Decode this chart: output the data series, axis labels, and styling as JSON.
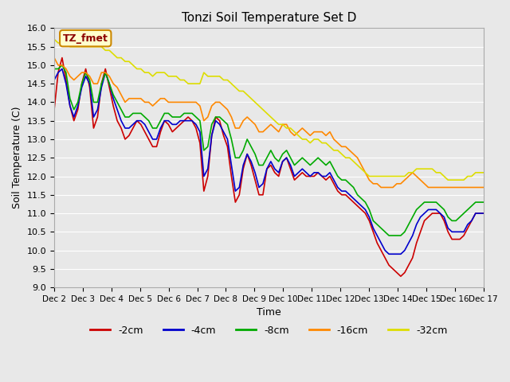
{
  "title": "Tonzi Soil Temperature Set D",
  "xlabel": "Time",
  "ylabel": "Soil Temperature (C)",
  "ylim": [
    9.0,
    16.0
  ],
  "yticks": [
    9.0,
    9.5,
    10.0,
    10.5,
    11.0,
    11.5,
    12.0,
    12.5,
    13.0,
    13.5,
    14.0,
    14.5,
    15.0,
    15.5,
    16.0
  ],
  "xtick_labels": [
    "Dec 2",
    "Dec 3",
    "Dec 4",
    "Dec 5",
    "Dec 6",
    "Dec 7",
    "Dec 8",
    "Dec 9",
    "Dec 10",
    "Dec 11",
    "Dec 12",
    "Dec 13",
    "Dec 14",
    "Dec 15",
    "Dec 16",
    "Dec 17"
  ],
  "colors": {
    "-2cm": "#cc0000",
    "-4cm": "#0000cc",
    "-8cm": "#00aa00",
    "-16cm": "#ff8800",
    "-32cm": "#dddd00"
  },
  "legend_label_box": "TZ_fmet",
  "legend_box_facecolor": "#ffffcc",
  "legend_box_edgecolor": "#cc8800",
  "background_color": "#e8e8e8",
  "plot_bg_color": "#e8e8e8",
  "grid_color": "#ffffff",
  "n_points": 360,
  "series": {
    "-2cm": [
      13.8,
      14.8,
      15.2,
      14.6,
      13.9,
      13.5,
      13.8,
      14.5,
      14.9,
      14.4,
      13.3,
      13.6,
      14.5,
      14.9,
      14.4,
      13.9,
      13.5,
      13.3,
      13.0,
      13.1,
      13.3,
      13.5,
      13.4,
      13.2,
      13.0,
      12.8,
      12.8,
      13.2,
      13.5,
      13.4,
      13.2,
      13.3,
      13.4,
      13.5,
      13.6,
      13.5,
      13.3,
      12.9,
      11.6,
      12.0,
      13.1,
      13.6,
      13.5,
      13.1,
      12.8,
      12.0,
      11.3,
      11.5,
      12.2,
      12.6,
      12.3,
      11.9,
      11.5,
      11.5,
      12.2,
      12.3,
      12.1,
      12.0,
      12.4,
      12.5,
      12.2,
      11.9,
      12.0,
      12.1,
      12.0,
      12.0,
      12.0,
      12.1,
      12.0,
      11.9,
      12.0,
      11.8,
      11.6,
      11.5,
      11.5,
      11.4,
      11.3,
      11.2,
      11.1,
      11.0,
      10.8,
      10.5,
      10.2,
      10.0,
      9.8,
      9.6,
      9.5,
      9.4,
      9.3,
      9.4,
      9.6,
      9.8,
      10.2,
      10.5,
      10.8,
      10.9,
      11.0,
      11.0,
      11.0,
      10.8,
      10.5,
      10.3,
      10.3,
      10.3,
      10.4,
      10.6,
      10.8,
      11.0,
      11.0,
      11.0
    ],
    "-4cm": [
      14.6,
      14.8,
      14.9,
      14.5,
      13.9,
      13.6,
      13.9,
      14.4,
      14.7,
      14.5,
      13.6,
      13.8,
      14.4,
      14.8,
      14.5,
      14.1,
      13.8,
      13.5,
      13.3,
      13.3,
      13.4,
      13.5,
      13.5,
      13.4,
      13.2,
      13.0,
      13.0,
      13.3,
      13.5,
      13.5,
      13.4,
      13.4,
      13.5,
      13.5,
      13.5,
      13.5,
      13.4,
      13.2,
      12.0,
      12.2,
      13.1,
      13.5,
      13.4,
      13.2,
      13.0,
      12.3,
      11.6,
      11.7,
      12.3,
      12.6,
      12.4,
      12.1,
      11.7,
      11.8,
      12.2,
      12.4,
      12.2,
      12.1,
      12.4,
      12.5,
      12.3,
      12.0,
      12.1,
      12.2,
      12.1,
      12.0,
      12.1,
      12.1,
      12.0,
      12.0,
      12.1,
      11.9,
      11.7,
      11.6,
      11.6,
      11.5,
      11.4,
      11.3,
      11.2,
      11.1,
      10.9,
      10.6,
      10.4,
      10.2,
      10.0,
      9.9,
      9.9,
      9.9,
      9.9,
      10.0,
      10.2,
      10.4,
      10.7,
      10.9,
      11.0,
      11.1,
      11.1,
      11.1,
      11.0,
      10.9,
      10.6,
      10.5,
      10.5,
      10.5,
      10.5,
      10.7,
      10.8,
      11.0,
      11.0,
      11.0
    ],
    "-8cm": [
      14.9,
      14.9,
      15.0,
      14.8,
      14.1,
      13.8,
      14.0,
      14.5,
      14.8,
      14.6,
      14.0,
      14.0,
      14.5,
      14.8,
      14.5,
      14.2,
      14.0,
      13.8,
      13.6,
      13.6,
      13.7,
      13.7,
      13.7,
      13.6,
      13.5,
      13.3,
      13.3,
      13.5,
      13.7,
      13.7,
      13.6,
      13.6,
      13.6,
      13.7,
      13.7,
      13.7,
      13.6,
      13.5,
      12.7,
      12.8,
      13.4,
      13.6,
      13.6,
      13.5,
      13.4,
      13.0,
      12.5,
      12.5,
      12.7,
      13.0,
      12.8,
      12.6,
      12.3,
      12.3,
      12.5,
      12.7,
      12.5,
      12.4,
      12.6,
      12.7,
      12.5,
      12.3,
      12.4,
      12.5,
      12.4,
      12.3,
      12.4,
      12.5,
      12.4,
      12.3,
      12.4,
      12.2,
      12.0,
      11.9,
      11.9,
      11.8,
      11.7,
      11.5,
      11.4,
      11.3,
      11.1,
      10.8,
      10.7,
      10.6,
      10.5,
      10.4,
      10.4,
      10.4,
      10.4,
      10.5,
      10.7,
      10.9,
      11.1,
      11.2,
      11.3,
      11.3,
      11.3,
      11.3,
      11.2,
      11.1,
      10.9,
      10.8,
      10.8,
      10.9,
      11.0,
      11.1,
      11.2,
      11.3,
      11.3,
      11.3
    ],
    "-16cm": [
      15.2,
      15.0,
      15.0,
      14.9,
      14.7,
      14.6,
      14.7,
      14.8,
      14.8,
      14.7,
      14.5,
      14.5,
      14.8,
      14.8,
      14.7,
      14.5,
      14.4,
      14.2,
      14.0,
      14.1,
      14.1,
      14.1,
      14.1,
      14.0,
      14.0,
      13.9,
      14.0,
      14.1,
      14.1,
      14.0,
      14.0,
      14.0,
      14.0,
      14.0,
      14.0,
      14.0,
      14.0,
      13.9,
      13.5,
      13.6,
      13.9,
      14.0,
      14.0,
      13.9,
      13.8,
      13.6,
      13.3,
      13.3,
      13.5,
      13.6,
      13.5,
      13.4,
      13.2,
      13.2,
      13.3,
      13.4,
      13.3,
      13.2,
      13.4,
      13.4,
      13.2,
      13.1,
      13.2,
      13.3,
      13.2,
      13.1,
      13.2,
      13.2,
      13.2,
      13.1,
      13.2,
      13.0,
      12.9,
      12.8,
      12.8,
      12.7,
      12.6,
      12.5,
      12.3,
      12.1,
      11.9,
      11.8,
      11.8,
      11.7,
      11.7,
      11.7,
      11.7,
      11.8,
      11.8,
      11.9,
      12.0,
      12.1,
      12.0,
      11.9,
      11.8,
      11.7,
      11.7,
      11.7,
      11.7,
      11.7,
      11.7,
      11.7,
      11.7,
      11.7,
      11.7,
      11.7,
      11.7,
      11.7,
      11.7,
      11.7
    ],
    "-32cm": [
      15.7,
      15.6,
      15.6,
      15.6,
      15.5,
      15.5,
      15.5,
      15.5,
      15.5,
      15.5,
      15.5,
      15.5,
      15.5,
      15.4,
      15.4,
      15.3,
      15.2,
      15.2,
      15.1,
      15.1,
      15.0,
      14.9,
      14.9,
      14.8,
      14.8,
      14.7,
      14.8,
      14.8,
      14.8,
      14.7,
      14.7,
      14.7,
      14.6,
      14.6,
      14.5,
      14.5,
      14.5,
      14.5,
      14.8,
      14.7,
      14.7,
      14.7,
      14.7,
      14.6,
      14.6,
      14.5,
      14.4,
      14.3,
      14.3,
      14.2,
      14.1,
      14.0,
      13.9,
      13.8,
      13.7,
      13.6,
      13.5,
      13.4,
      13.4,
      13.3,
      13.3,
      13.2,
      13.1,
      13.0,
      13.0,
      12.9,
      13.0,
      13.0,
      12.9,
      12.9,
      12.8,
      12.7,
      12.7,
      12.6,
      12.5,
      12.5,
      12.4,
      12.3,
      12.2,
      12.1,
      12.0,
      12.0,
      12.0,
      12.0,
      12.0,
      12.0,
      12.0,
      12.0,
      12.0,
      12.0,
      12.1,
      12.1,
      12.2,
      12.2,
      12.2,
      12.2,
      12.2,
      12.1,
      12.1,
      12.0,
      11.9,
      11.9,
      11.9,
      11.9,
      11.9,
      12.0,
      12.0,
      12.1,
      12.1,
      12.1
    ]
  }
}
